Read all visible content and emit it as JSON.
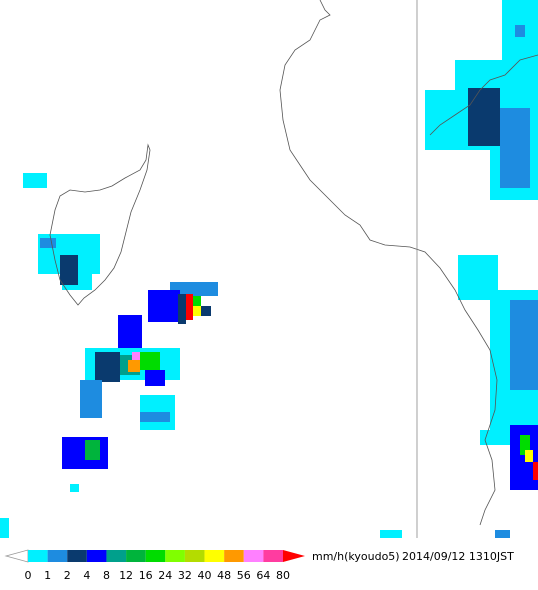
{
  "legend": {
    "levels": [
      0,
      1,
      2,
      4,
      8,
      12,
      16,
      24,
      32,
      40,
      48,
      56,
      64,
      80
    ],
    "colors": [
      "#00f0ff",
      "#1e8ce0",
      "#0a3a6e",
      "#0000ff",
      "#00a08c",
      "#00b43c",
      "#00dc00",
      "#80ff00",
      "#b4dc00",
      "#ffff00",
      "#ff9900",
      "#ff80ff",
      "#ff3ca0"
    ],
    "over_color": "#ff0000",
    "unit": "mm/h(kyoudo5)",
    "timestamp": "2014/09/12 1310JST"
  }
}
